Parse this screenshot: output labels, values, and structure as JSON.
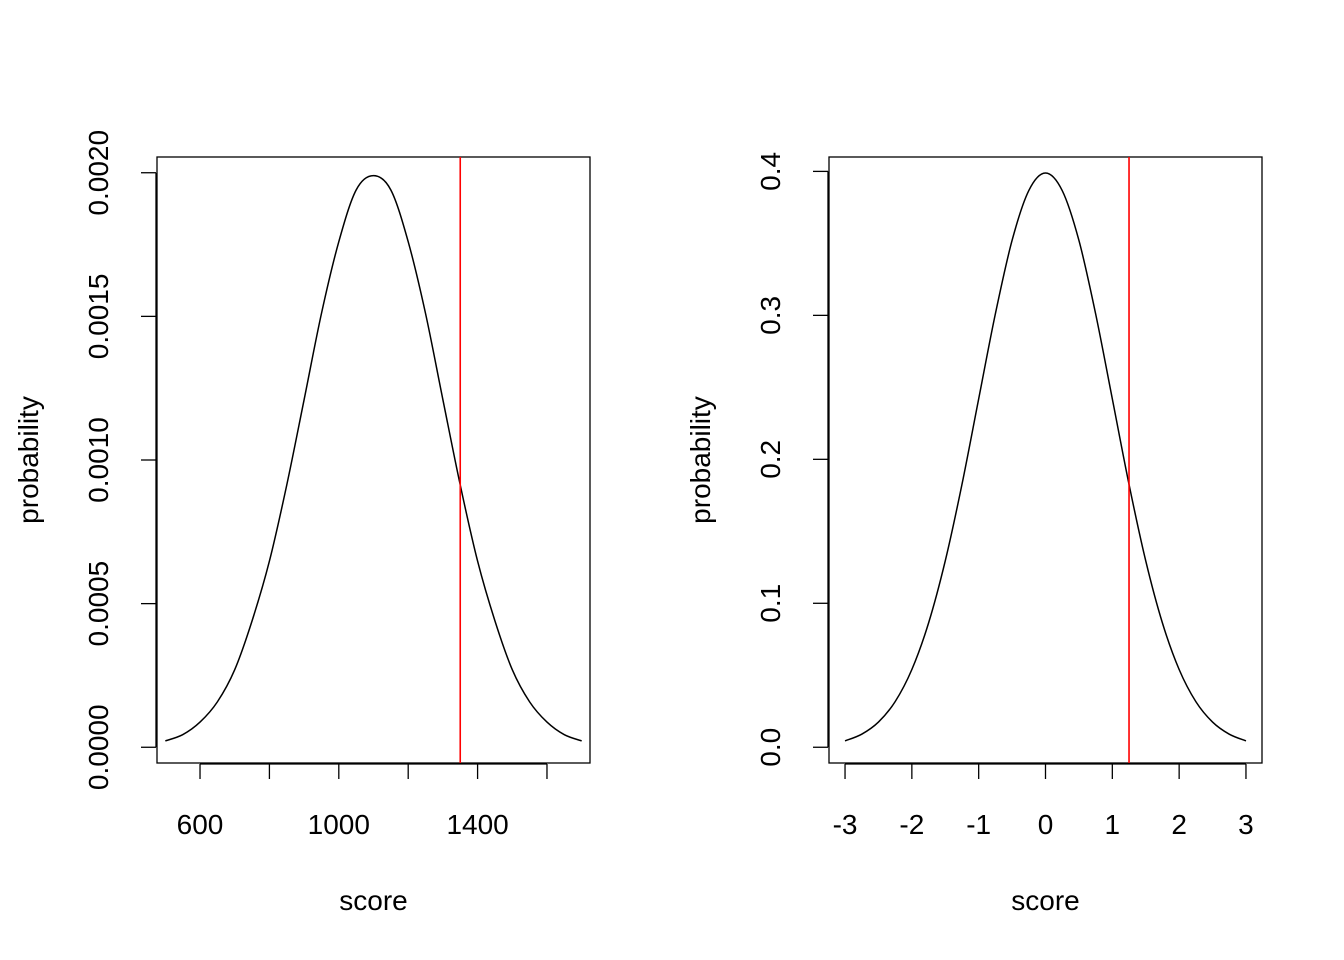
{
  "chart_data": [
    {
      "type": "line",
      "xlabel": "score",
      "ylabel": "probability",
      "xlim": [
        476,
        1724
      ],
      "ylim": [
        -5.48e-05,
        0.0020548
      ],
      "x_ticks": [
        "600",
        "800",
        "1000",
        "1200",
        "1400",
        "1600"
      ],
      "x_tick_values": [
        600,
        800,
        1000,
        1200,
        1400,
        1600
      ],
      "x_tick_labels_shown": [
        "600",
        "1000",
        "1400"
      ],
      "y_ticks": [
        "0.0000",
        "0.0005",
        "0.0010",
        "0.0015",
        "0.0020"
      ],
      "y_tick_values": [
        0,
        0.0005,
        0.001,
        0.0015,
        0.002
      ],
      "x": [
        500,
        550,
        600,
        650,
        700,
        750,
        800,
        850,
        900,
        950,
        1000,
        1050,
        1100,
        1150,
        1200,
        1250,
        1300,
        1350,
        1400,
        1450,
        1500,
        1550,
        1600,
        1650,
        1700
      ],
      "y": [
        2.22e-05,
        4.38e-05,
        8.76e-05,
        0.000158,
        0.00027,
        0.00044,
        0.000648,
        0.000913,
        0.00121,
        0.00151,
        0.00176,
        0.00194,
        0.00199,
        0.00194,
        0.00176,
        0.00151,
        0.00121,
        0.000913,
        0.000648,
        0.00044,
        0.00027,
        0.000158,
        8.76e-05,
        4.38e-05,
        2.22e-05
      ],
      "vline": {
        "x": 1350,
        "color": "#ff0000"
      },
      "line_color": "#000000",
      "grid": false
    },
    {
      "type": "line",
      "xlabel": "score",
      "ylabel": "probability",
      "xlim": [
        -3.24,
        3.24
      ],
      "ylim": [
        -0.01094,
        0.41
      ],
      "x_ticks": [
        "-3",
        "-2",
        "-1",
        "0",
        "1",
        "2",
        "3"
      ],
      "x_tick_values": [
        -3,
        -2,
        -1,
        0,
        1,
        2,
        3
      ],
      "x_tick_labels_shown": [
        "-3",
        "-2",
        "-1",
        "0",
        "1",
        "2",
        "3"
      ],
      "y_ticks": [
        "0.0",
        "0.1",
        "0.2",
        "0.3",
        "0.4"
      ],
      "y_tick_values": [
        0,
        0.1,
        0.2,
        0.3,
        0.4
      ],
      "x": [
        -3,
        -2.75,
        -2.5,
        -2.25,
        -2,
        -1.75,
        -1.5,
        -1.25,
        -1,
        -0.75,
        -0.5,
        -0.25,
        0,
        0.25,
        0.5,
        0.75,
        1,
        1.25,
        1.5,
        1.75,
        2,
        2.25,
        2.5,
        2.75,
        3
      ],
      "y": [
        0.00443,
        0.00909,
        0.0175,
        0.0317,
        0.054,
        0.0863,
        0.1295,
        0.1826,
        0.242,
        0.3011,
        0.3521,
        0.3867,
        0.3989,
        0.3867,
        0.3521,
        0.3011,
        0.242,
        0.1826,
        0.1295,
        0.0863,
        0.054,
        0.0317,
        0.0175,
        0.00909,
        0.00443
      ],
      "vline": {
        "x": 1.25,
        "color": "#ff0000"
      },
      "line_color": "#000000",
      "grid": false
    }
  ]
}
